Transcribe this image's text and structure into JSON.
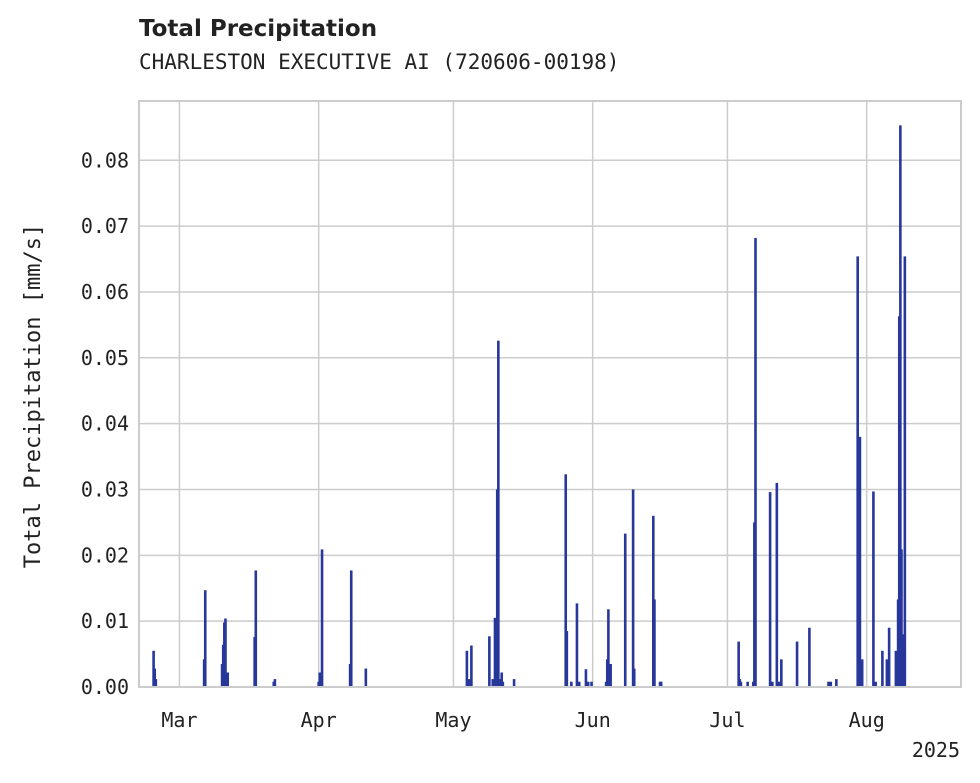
{
  "chart_data": {
    "type": "bar",
    "title": "Total Precipitation",
    "subtitle": "CHARLESTON EXECUTIVE AI (720606-00198)",
    "xlabel": "",
    "ylabel": "Total Precipitation [mm/s]",
    "year_label": "2025",
    "xlim": [
      "2025-02-20",
      "2025-08-22"
    ],
    "ylim": [
      0,
      0.089
    ],
    "yticks": [
      0.0,
      0.01,
      0.02,
      0.03,
      0.04,
      0.05,
      0.06,
      0.07,
      0.08
    ],
    "ytick_labels": [
      "0.00",
      "0.01",
      "0.02",
      "0.03",
      "0.04",
      "0.05",
      "0.06",
      "0.07",
      "0.08"
    ],
    "xticks": [
      {
        "date": "2025-03-01",
        "label": "Mar"
      },
      {
        "date": "2025-04-01",
        "label": "Apr"
      },
      {
        "date": "2025-05-01",
        "label": "May"
      },
      {
        "date": "2025-06-01",
        "label": "Jun"
      },
      {
        "date": "2025-07-01",
        "label": "Jul"
      },
      {
        "date": "2025-08-01",
        "label": "Aug"
      }
    ],
    "grid": true,
    "colors": {
      "bar": "#27379a",
      "grid": "#cccccc",
      "frame": "#cccccc"
    },
    "series": [
      {
        "values": [
          [
            "2025-02-23T06:00",
            0.0055
          ],
          [
            "2025-02-23T12:00",
            0.0028
          ],
          [
            "2025-02-23T18:00",
            0.0012
          ],
          [
            "2025-03-06T12:00",
            0.0042
          ],
          [
            "2025-03-06T18:00",
            0.0147
          ],
          [
            "2025-03-10T12:00",
            0.0035
          ],
          [
            "2025-03-10T18:00",
            0.0064
          ],
          [
            "2025-03-11T00:00",
            0.0098
          ],
          [
            "2025-03-11T06:00",
            0.0104
          ],
          [
            "2025-03-11T18:00",
            0.0022
          ],
          [
            "2025-03-17T18:00",
            0.0076
          ],
          [
            "2025-03-18T00:00",
            0.0177
          ],
          [
            "2025-03-22T00:00",
            0.0008
          ],
          [
            "2025-03-22T06:00",
            0.0012
          ],
          [
            "2025-04-01T00:00",
            0.0008
          ],
          [
            "2025-04-01T06:00",
            0.0022
          ],
          [
            "2025-04-01T18:00",
            0.0209
          ],
          [
            "2025-04-08T00:00",
            0.0035
          ],
          [
            "2025-04-08T06:00",
            0.0177
          ],
          [
            "2025-04-11T12:00",
            0.0028
          ],
          [
            "2025-05-04T00:00",
            0.0055
          ],
          [
            "2025-05-04T12:00",
            0.0012
          ],
          [
            "2025-05-05T00:00",
            0.0063
          ],
          [
            "2025-05-09T00:00",
            0.0077
          ],
          [
            "2025-05-09T18:00",
            0.0012
          ],
          [
            "2025-05-10T06:00",
            0.0105
          ],
          [
            "2025-05-10T12:00",
            0.0012
          ],
          [
            "2025-05-10T18:00",
            0.03
          ],
          [
            "2025-05-11T00:00",
            0.0526
          ],
          [
            "2025-05-11T06:00",
            0.0012
          ],
          [
            "2025-05-11T18:00",
            0.0022
          ],
          [
            "2025-05-12T00:00",
            0.0008
          ],
          [
            "2025-05-14T12:00",
            0.0012
          ],
          [
            "2025-05-26T00:00",
            0.0323
          ],
          [
            "2025-05-26T06:00",
            0.0085
          ],
          [
            "2025-05-27T06:00",
            0.0008
          ],
          [
            "2025-05-28T12:00",
            0.0127
          ],
          [
            "2025-05-29T00:00",
            0.0008
          ],
          [
            "2025-05-30T12:00",
            0.0027
          ],
          [
            "2025-05-31T00:00",
            0.0008
          ],
          [
            "2025-05-31T18:00",
            0.0008
          ],
          [
            "2025-06-04T00:00",
            0.0008
          ],
          [
            "2025-06-04T06:00",
            0.0042
          ],
          [
            "2025-06-04T12:00",
            0.0118
          ],
          [
            "2025-06-05T00:00",
            0.0035
          ],
          [
            "2025-06-08T06:00",
            0.0233
          ],
          [
            "2025-06-10T00:00",
            0.03
          ],
          [
            "2025-06-10T06:00",
            0.0028
          ],
          [
            "2025-06-14T12:00",
            0.026
          ],
          [
            "2025-06-14T18:00",
            0.0133
          ],
          [
            "2025-06-16T00:00",
            0.0008
          ],
          [
            "2025-06-16T06:00",
            0.0008
          ],
          [
            "2025-07-03T12:00",
            0.0069
          ],
          [
            "2025-07-03T18:00",
            0.0012
          ],
          [
            "2025-07-04T00:00",
            0.0008
          ],
          [
            "2025-07-05T12:00",
            0.0008
          ],
          [
            "2025-07-06T18:00",
            0.0008
          ],
          [
            "2025-07-07T00:00",
            0.025
          ],
          [
            "2025-07-07T06:00",
            0.0682
          ],
          [
            "2025-07-10T12:00",
            0.0296
          ],
          [
            "2025-07-11T00:00",
            0.0008
          ],
          [
            "2025-07-12T00:00",
            0.031
          ],
          [
            "2025-07-12T12:00",
            0.0008
          ],
          [
            "2025-07-13T00:00",
            0.0042
          ],
          [
            "2025-07-16T12:00",
            0.0069
          ],
          [
            "2025-07-19T06:00",
            0.009
          ],
          [
            "2025-07-23T12:00",
            0.0008
          ],
          [
            "2025-07-24T00:00",
            0.0008
          ],
          [
            "2025-07-25T06:00",
            0.0012
          ],
          [
            "2025-07-30T00:00",
            0.0654
          ],
          [
            "2025-07-30T12:00",
            0.038
          ],
          [
            "2025-07-31T00:00",
            0.0042
          ],
          [
            "2025-08-02T12:00",
            0.0297
          ],
          [
            "2025-08-03T00:00",
            0.0008
          ],
          [
            "2025-08-04T12:00",
            0.0055
          ],
          [
            "2025-08-05T12:00",
            0.0042
          ],
          [
            "2025-08-06T00:00",
            0.009
          ],
          [
            "2025-08-07T12:00",
            0.0055
          ],
          [
            "2025-08-08T00:00",
            0.0133
          ],
          [
            "2025-08-08T06:00",
            0.0563
          ],
          [
            "2025-08-08T12:00",
            0.0853
          ],
          [
            "2025-08-08T18:00",
            0.0209
          ],
          [
            "2025-08-09T06:00",
            0.008
          ],
          [
            "2025-08-09T12:00",
            0.0654
          ]
        ]
      }
    ]
  }
}
